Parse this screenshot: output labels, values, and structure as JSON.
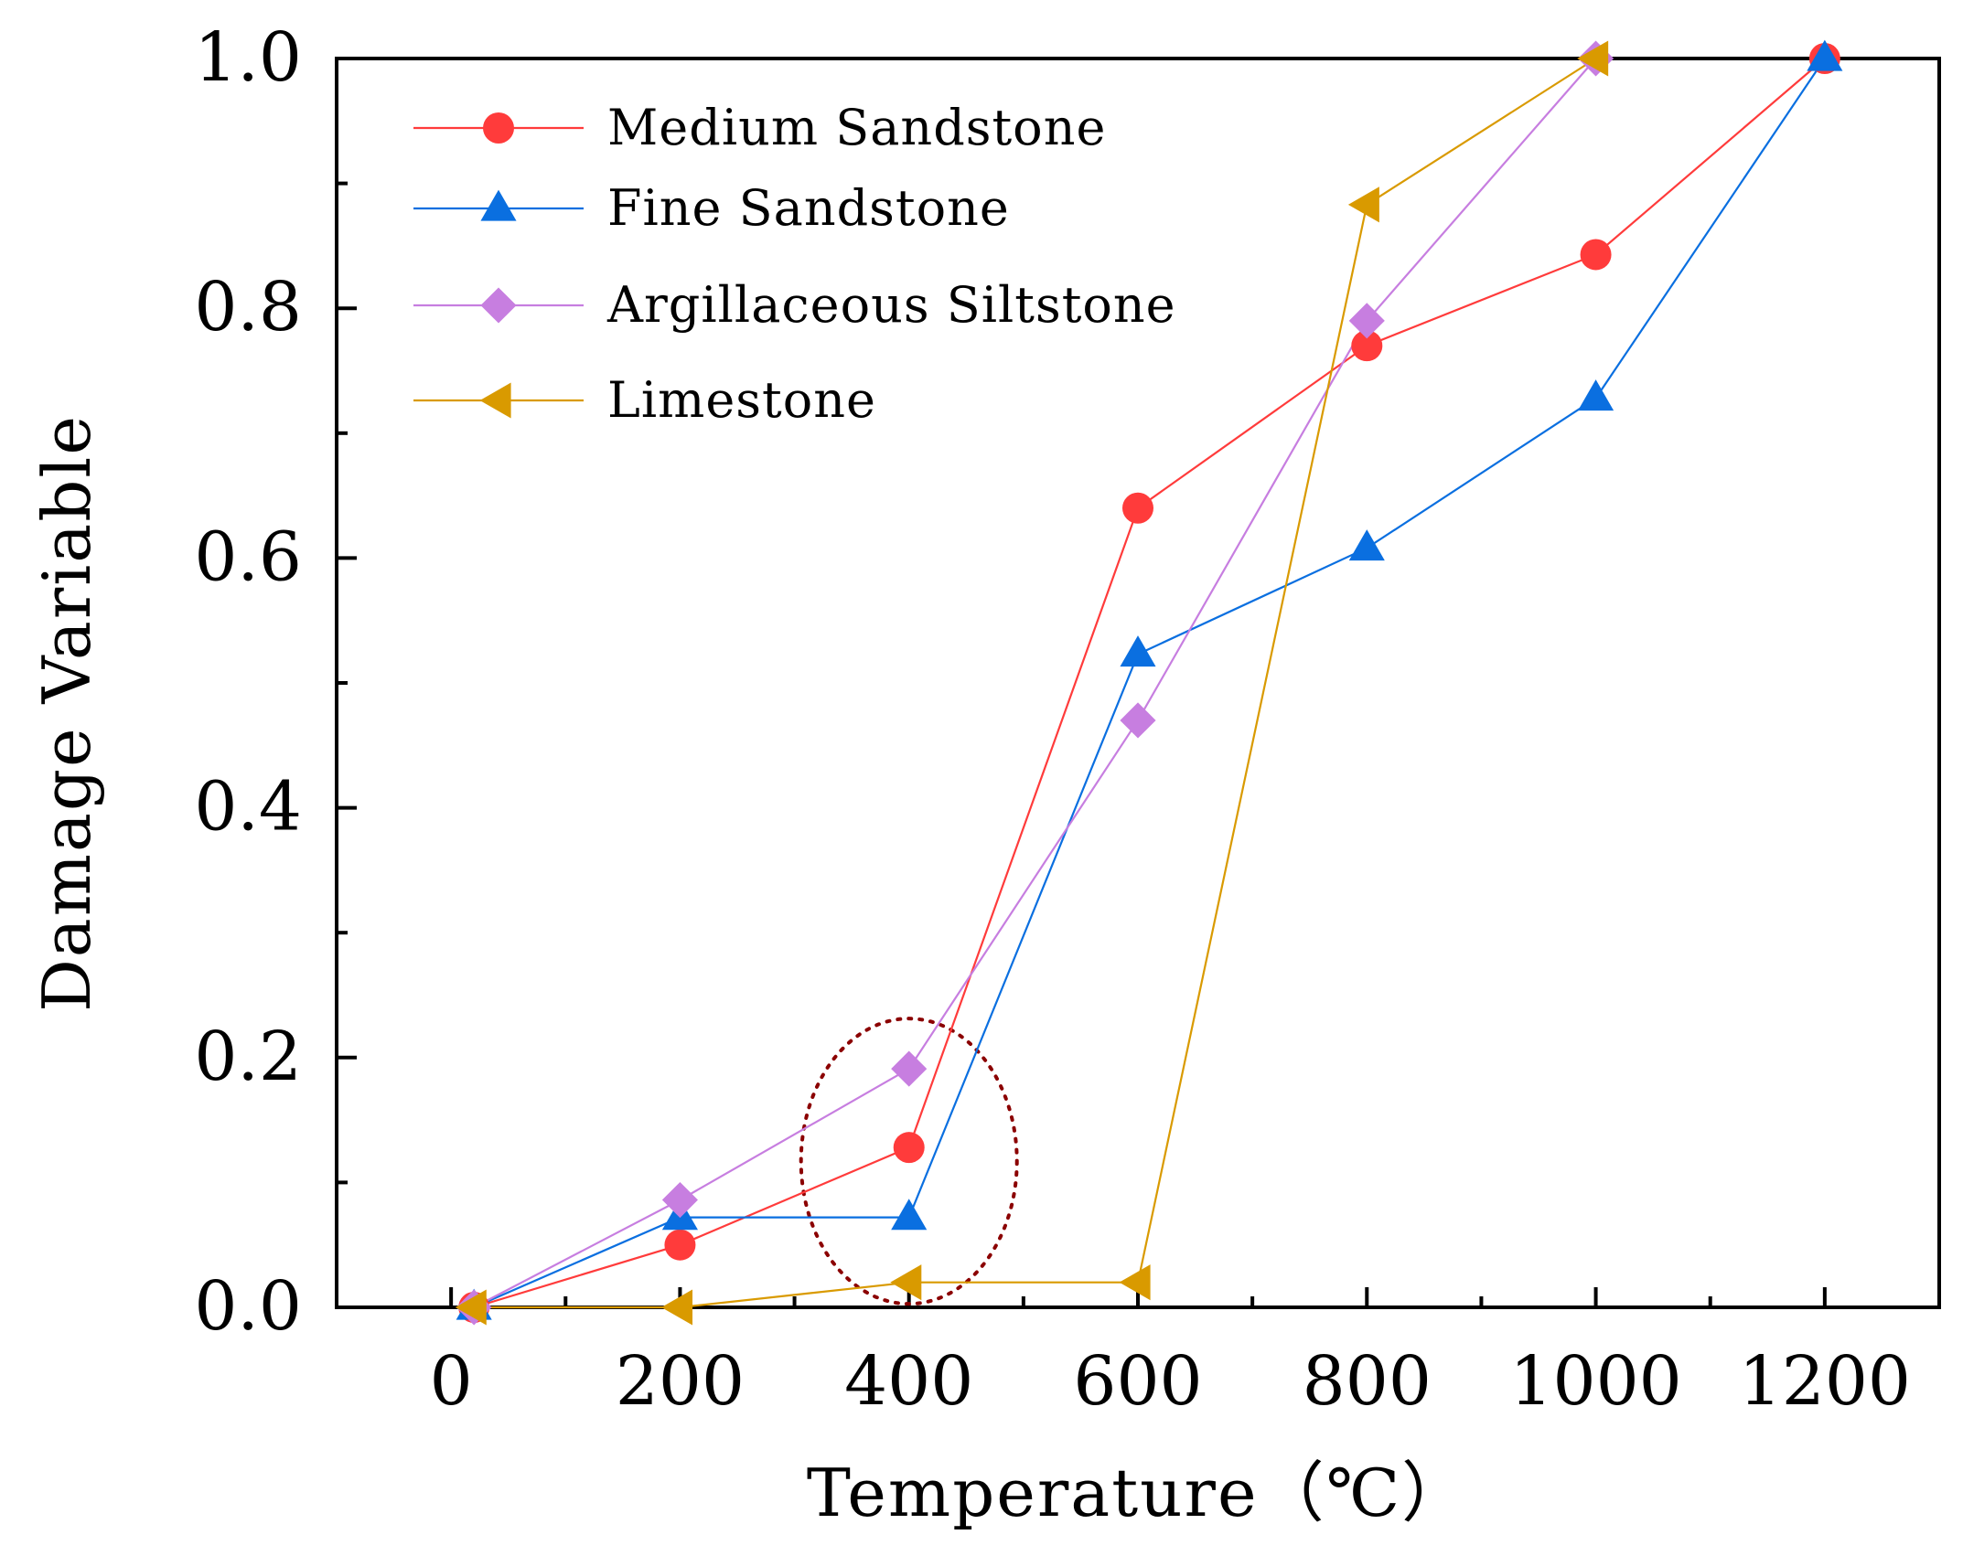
{
  "chart_data": {
    "type": "line",
    "xlabel": "Temperature（℃）",
    "ylabel": "Damage Variable",
    "xlim": [
      -100,
      1300
    ],
    "ylim": [
      0,
      1
    ],
    "x_ticks": [
      0,
      200,
      400,
      600,
      800,
      1000,
      1200
    ],
    "x_tick_labels": [
      "0",
      "200",
      "400",
      "600",
      "800",
      "1000",
      "1200"
    ],
    "y_ticks": [
      0,
      0.2,
      0.4,
      0.6,
      0.8,
      1.0
    ],
    "y_tick_labels": [
      "0.0",
      "0.2",
      "0.4",
      "0.6",
      "0.8",
      "1.0"
    ],
    "legend_position": "top-left",
    "annotation": "dotted ellipse around 400 ℃ points",
    "series": [
      {
        "name": "Medium Sandstone",
        "color": "#ff3b3b",
        "marker": "circle",
        "points": [
          [
            20,
            0.0
          ],
          [
            200,
            0.05
          ],
          [
            400,
            0.128
          ],
          [
            600,
            0.64
          ],
          [
            800,
            0.77
          ],
          [
            1000,
            0.843
          ],
          [
            1200,
            1.0
          ]
        ]
      },
      {
        "name": "Fine Sandstone",
        "color": "#0a6fe0",
        "marker": "triangle-up",
        "points": [
          [
            20,
            0.0
          ],
          [
            200,
            0.072
          ],
          [
            400,
            0.072
          ],
          [
            600,
            0.523
          ],
          [
            800,
            0.608
          ],
          [
            1000,
            0.728
          ],
          [
            1200,
            1.0
          ]
        ]
      },
      {
        "name": "Argillaceous Siltstone",
        "color": "#c77ee0",
        "marker": "diamond",
        "points": [
          [
            20,
            0.0
          ],
          [
            200,
            0.086
          ],
          [
            400,
            0.191
          ],
          [
            600,
            0.47
          ],
          [
            800,
            0.79
          ],
          [
            1000,
            1.0
          ]
        ]
      },
      {
        "name": "Limestone",
        "color": "#d99a00",
        "marker": "triangle-left",
        "points": [
          [
            20,
            0.0
          ],
          [
            200,
            0.0
          ],
          [
            400,
            0.02
          ],
          [
            600,
            0.02
          ],
          [
            800,
            0.883
          ],
          [
            1000,
            1.0
          ]
        ]
      }
    ]
  }
}
